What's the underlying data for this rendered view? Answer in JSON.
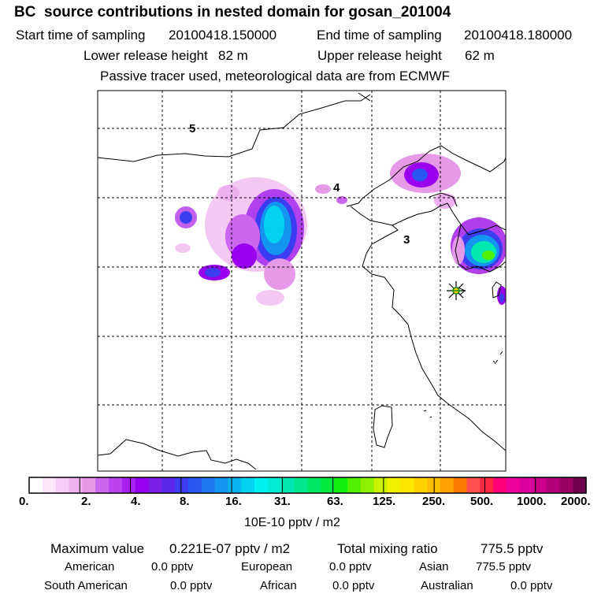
{
  "header": {
    "title": "BC  source contributions in nested domain for gosan_201004",
    "start_label": "Start time of sampling",
    "start_value": "20100418.150000",
    "end_label": "End time of sampling",
    "end_value": "20100418.180000",
    "lower_label": "Lower release height",
    "lower_value": "82 m",
    "upper_label": "Upper release height",
    "upper_value": "62 m",
    "note": "Passive tracer used, meteorological data are from ECMWF"
  },
  "map": {
    "contour_labels": [
      "5",
      "4",
      "3"
    ],
    "receptor": "gosan"
  },
  "colorbar": {
    "ticks": [
      "0.",
      "2.",
      "4.",
      "8.",
      "16.",
      "31.",
      "63.",
      "125.",
      "250.",
      "500.",
      "1000.",
      "2000."
    ],
    "colors": [
      "#ffffff",
      "#fbe6fb",
      "#f5ccf5",
      "#eeb3ee",
      "#e699e6",
      "#cc66ee",
      "#bb44f0",
      "#a822ee",
      "#9900ee",
      "#7a1ee8",
      "#5a28e8",
      "#3c3cf0",
      "#2858f0",
      "#1e78f0",
      "#1496f0",
      "#0ab4f0",
      "#00d2f0",
      "#00f0f0",
      "#00ecd2",
      "#00e8b0",
      "#00e88c",
      "#00e864",
      "#00e83c",
      "#10ee10",
      "#50f000",
      "#8cf000",
      "#c8f000",
      "#f0f000",
      "#ffe600",
      "#ffd200",
      "#ffbe00",
      "#ffa000",
      "#ff7800",
      "#ff5050",
      "#ff2840",
      "#ff0078",
      "#f0009c",
      "#dc00a0",
      "#c8008c",
      "#b40078",
      "#9a0064",
      "#70004c"
    ],
    "unit": "10E-10 pptv / m2"
  },
  "summary": {
    "max_label": "Maximum value",
    "max_value": "0.221E-07 pptv / m2",
    "total_label": "Total mixing ratio",
    "total_value": "775.5 pptv"
  },
  "regions": [
    {
      "name": "American",
      "value": "0.0 pptv"
    },
    {
      "name": "European",
      "value": "0.0 pptv"
    },
    {
      "name": "Asian",
      "value": "775.5 pptv"
    },
    {
      "name": "South American",
      "value": "0.0 pptv"
    },
    {
      "name": "African",
      "value": "0.0 pptv"
    },
    {
      "name": "Australian",
      "value": "0.0 pptv"
    }
  ]
}
